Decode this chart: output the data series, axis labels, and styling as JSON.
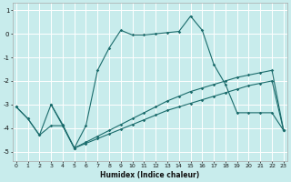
{
  "xlabel": "Humidex (Indice chaleur)",
  "bg_color": "#c8ecec",
  "grid_color": "#ffffff",
  "line_color": "#1a6b6b",
  "marker": "D",
  "markersize": 1.8,
  "linewidth": 0.8,
  "xlim": [
    -0.3,
    23.3
  ],
  "ylim": [
    -5.4,
    1.3
  ],
  "yticks": [
    1,
    0,
    -1,
    -2,
    -3,
    -4,
    -5
  ],
  "xticks": [
    0,
    1,
    2,
    3,
    4,
    5,
    6,
    7,
    8,
    9,
    10,
    11,
    12,
    13,
    14,
    15,
    16,
    17,
    18,
    19,
    20,
    21,
    22,
    23
  ],
  "line1_x": [
    0,
    1,
    2,
    3,
    4,
    5,
    6,
    7,
    8,
    9,
    10,
    11,
    12,
    13,
    14,
    15,
    16,
    17,
    18,
    19,
    20,
    21,
    22,
    23
  ],
  "line1_y": [
    -3.1,
    -3.6,
    -4.3,
    -3.0,
    -3.9,
    -4.85,
    -4.6,
    -4.35,
    -4.1,
    -3.85,
    -3.6,
    -3.35,
    -3.1,
    -2.85,
    -2.65,
    -2.45,
    -2.3,
    -2.15,
    -2.0,
    -1.85,
    -1.75,
    -1.65,
    -1.55,
    -4.1
  ],
  "line2_x": [
    0,
    1,
    2,
    3,
    4,
    5,
    6,
    7,
    8,
    9,
    10,
    11,
    12,
    13,
    14,
    15,
    16,
    17,
    18,
    19,
    20,
    21,
    22,
    23
  ],
  "line2_y": [
    -3.1,
    -3.6,
    -4.3,
    -3.9,
    -3.9,
    -4.85,
    -4.65,
    -4.45,
    -4.25,
    -4.05,
    -3.85,
    -3.65,
    -3.45,
    -3.25,
    -3.1,
    -2.95,
    -2.8,
    -2.65,
    -2.5,
    -2.35,
    -2.2,
    -2.1,
    -2.0,
    -4.1
  ],
  "line3_x": [
    3,
    4,
    5,
    6,
    7,
    8,
    9,
    10,
    11,
    12,
    13,
    14,
    15,
    16,
    17,
    18,
    19,
    20,
    21,
    22,
    23
  ],
  "line3_y": [
    -3.0,
    -3.85,
    -4.85,
    -3.9,
    -1.55,
    -0.6,
    0.15,
    -0.05,
    -0.05,
    0.0,
    0.05,
    0.1,
    0.75,
    0.15,
    -1.3,
    -2.15,
    -3.35,
    -3.35,
    -3.35,
    -3.35,
    -4.1
  ]
}
